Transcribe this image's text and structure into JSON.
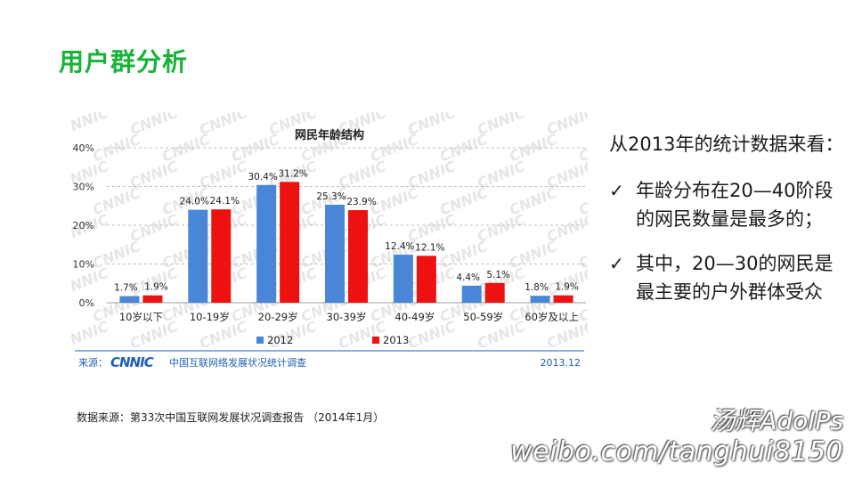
{
  "slide": {
    "title": "用户群分析",
    "source_note": "数据来源：第33次中国互联网发展状况调查报告 （2014年1月）"
  },
  "chart_data": {
    "type": "bar",
    "title": "网民年龄结构",
    "categories": [
      "10岁以下",
      "10-19岁",
      "20-29岁",
      "30-39岁",
      "40-49岁",
      "50-59岁",
      "60岁及以上"
    ],
    "series": [
      {
        "name": "2012",
        "color": "#4a86d8",
        "values": [
          1.7,
          24.0,
          30.4,
          25.3,
          12.4,
          4.4,
          1.8
        ]
      },
      {
        "name": "2013",
        "color": "#ee1111",
        "values": [
          1.9,
          24.1,
          31.2,
          23.9,
          12.1,
          5.1,
          1.9
        ]
      }
    ],
    "value_labels": [
      [
        "1.7%",
        "24.0%",
        "30.4%",
        "25.3%",
        "12.4%",
        "4.4%",
        "1.8%"
      ],
      [
        "1.9%",
        "24.1%",
        "31.2%",
        "23.9%",
        "12.1%",
        "5.1%",
        "1.9%"
      ]
    ],
    "ylim": [
      0,
      40
    ],
    "yticks": [
      0,
      10,
      20,
      30,
      40
    ],
    "ytick_labels": [
      "0%",
      "10%",
      "20%",
      "30%",
      "40%"
    ],
    "grid": "dashed-horizontal",
    "legend": "bottom-center",
    "footer_source_label": "来源：",
    "footer_logo_text": "CNNIC",
    "footer_org": "中国互联网络发展状况统计调查",
    "footer_date": "2013.12",
    "footer_color": "#1f5fb4"
  },
  "summary": {
    "intro": "从2013年的统计数据来看：",
    "bullets": [
      "年龄分布在20—40阶段的网民数量是最多的；",
      "其中，20—30的网民是最主要的户外群体受众"
    ],
    "bullet_glyph": "✓"
  },
  "watermark": {
    "name": "汤辉AdoIPs",
    "url": "weibo.com/tanghui8150"
  }
}
